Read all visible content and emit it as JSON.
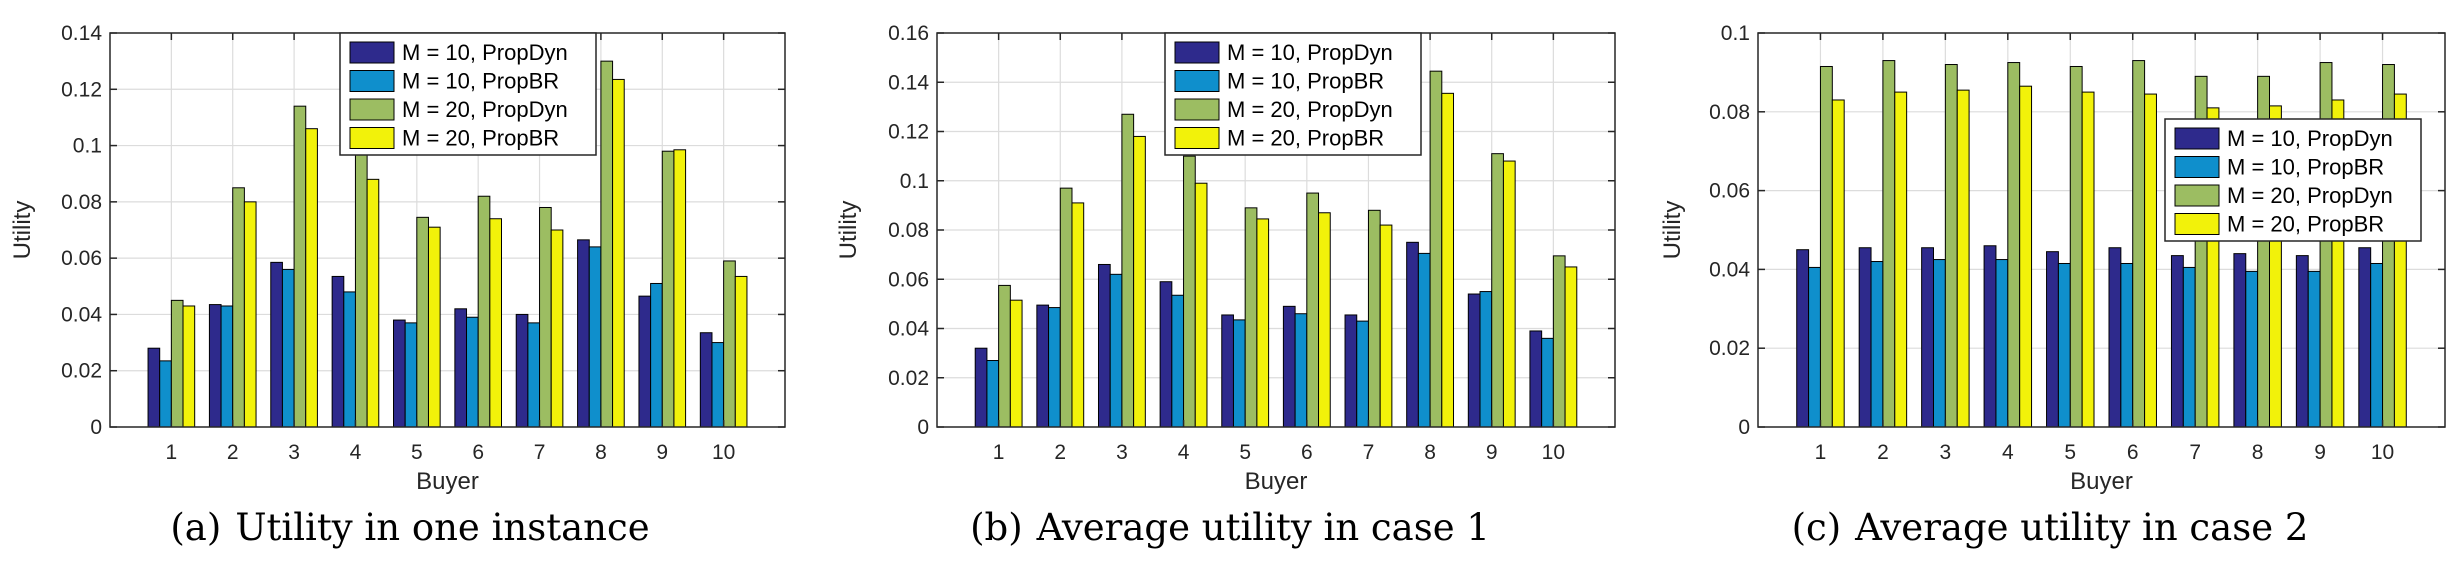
{
  "colors": {
    "M10_PropDyn": "#2e2a8c",
    "M10_PropBR": "#0f8fcc",
    "M20_PropDyn": "#9cbd62",
    "M20_PropBR": "#f2f20a",
    "grid": "#dcdcdc",
    "axis": "#262626"
  },
  "charts": [
    {
      "caption_prefix": "(a)",
      "caption": "Utility in one instance",
      "chart_data": {
        "type": "bar",
        "xlabel": "Buyer",
        "ylabel": "Utility",
        "ylim": [
          0,
          0.14
        ],
        "yticks": [
          0,
          0.02,
          0.04,
          0.06,
          0.08,
          0.1,
          0.12,
          0.14
        ],
        "ytick_labels": [
          "0",
          "0.02",
          "0.04",
          "0.06",
          "0.08",
          "0.1",
          "0.12",
          "0.14"
        ],
        "categories": [
          "1",
          "2",
          "3",
          "4",
          "5",
          "6",
          "7",
          "8",
          "9",
          "10"
        ],
        "grid": true,
        "legend_position": "top-center",
        "series": [
          {
            "name": "M = 10, PropDyn",
            "color_key": "M10_PropDyn",
            "values": [
              0.028,
              0.0435,
              0.0585,
              0.0535,
              0.038,
              0.042,
              0.04,
              0.0665,
              0.0465,
              0.0335
            ]
          },
          {
            "name": "M = 10, PropBR",
            "color_key": "M10_PropBR",
            "values": [
              0.0235,
              0.043,
              0.056,
              0.048,
              0.037,
              0.039,
              0.037,
              0.064,
              0.051,
              0.03
            ]
          },
          {
            "name": "M = 20, PropDyn",
            "color_key": "M20_PropDyn",
            "values": [
              0.045,
              0.085,
              0.114,
              0.099,
              0.0745,
              0.082,
              0.078,
              0.13,
              0.098,
              0.059
            ]
          },
          {
            "name": "M = 20, PropBR",
            "color_key": "M20_PropBR",
            "values": [
              0.043,
              0.08,
              0.106,
              0.088,
              0.071,
              0.074,
              0.07,
              0.1235,
              0.0985,
              0.0535
            ]
          }
        ]
      }
    },
    {
      "caption_prefix": "(b)",
      "caption": "Average utility in case 1",
      "chart_data": {
        "type": "bar",
        "xlabel": "Buyer",
        "ylabel": "Utility",
        "ylim": [
          0,
          0.16
        ],
        "yticks": [
          0,
          0.02,
          0.04,
          0.06,
          0.08,
          0.1,
          0.12,
          0.14,
          0.16
        ],
        "ytick_labels": [
          "0",
          "0.02",
          "0.04",
          "0.06",
          "0.08",
          "0.1",
          "0.12",
          "0.14",
          "0.16"
        ],
        "categories": [
          "1",
          "2",
          "3",
          "4",
          "5",
          "6",
          "7",
          "8",
          "9",
          "10"
        ],
        "grid": true,
        "legend_position": "top-center",
        "series": [
          {
            "name": "M = 10, PropDyn",
            "color_key": "M10_PropDyn",
            "values": [
              0.032,
              0.0495,
              0.066,
              0.059,
              0.0455,
              0.049,
              0.0455,
              0.075,
              0.054,
              0.039
            ]
          },
          {
            "name": "M = 10, PropBR",
            "color_key": "M10_PropBR",
            "values": [
              0.027,
              0.0485,
              0.062,
              0.0535,
              0.0435,
              0.046,
              0.043,
              0.0705,
              0.055,
              0.036
            ]
          },
          {
            "name": "M = 20, PropDyn",
            "color_key": "M20_PropDyn",
            "values": [
              0.0575,
              0.097,
              0.127,
              0.11,
              0.089,
              0.095,
              0.088,
              0.1445,
              0.111,
              0.0695
            ]
          },
          {
            "name": "M = 20, PropBR",
            "color_key": "M20_PropBR",
            "values": [
              0.0515,
              0.091,
              0.118,
              0.099,
              0.0845,
              0.087,
              0.082,
              0.1355,
              0.108,
              0.065
            ]
          }
        ]
      }
    },
    {
      "caption_prefix": "(c)",
      "caption": "Average utility in case 2",
      "chart_data": {
        "type": "bar",
        "xlabel": "Buyer",
        "ylabel": "Utility",
        "ylim": [
          0,
          0.1
        ],
        "yticks": [
          0,
          0.02,
          0.04,
          0.06,
          0.08,
          0.1
        ],
        "ytick_labels": [
          "0",
          "0.02",
          "0.04",
          "0.06",
          "0.08",
          "0.1"
        ],
        "categories": [
          "1",
          "2",
          "3",
          "4",
          "5",
          "6",
          "7",
          "8",
          "9",
          "10"
        ],
        "grid": true,
        "legend_position": "right",
        "series": [
          {
            "name": "M = 10, PropDyn",
            "color_key": "M10_PropDyn",
            "values": [
              0.045,
              0.0455,
              0.0455,
              0.046,
              0.0445,
              0.0455,
              0.0435,
              0.044,
              0.0435,
              0.0455
            ]
          },
          {
            "name": "M = 10, PropBR",
            "color_key": "M10_PropBR",
            "values": [
              0.0405,
              0.042,
              0.0425,
              0.0425,
              0.0415,
              0.0415,
              0.0405,
              0.0395,
              0.0395,
              0.0415
            ]
          },
          {
            "name": "M = 20, PropDyn",
            "color_key": "M20_PropDyn",
            "values": [
              0.0915,
              0.093,
              0.092,
              0.0925,
              0.0915,
              0.093,
              0.089,
              0.089,
              0.0925,
              0.092
            ]
          },
          {
            "name": "M = 20, PropBR",
            "color_key": "M20_PropBR",
            "values": [
              0.083,
              0.085,
              0.0855,
              0.0865,
              0.085,
              0.0845,
              0.081,
              0.0815,
              0.083,
              0.0845
            ]
          }
        ]
      }
    }
  ]
}
